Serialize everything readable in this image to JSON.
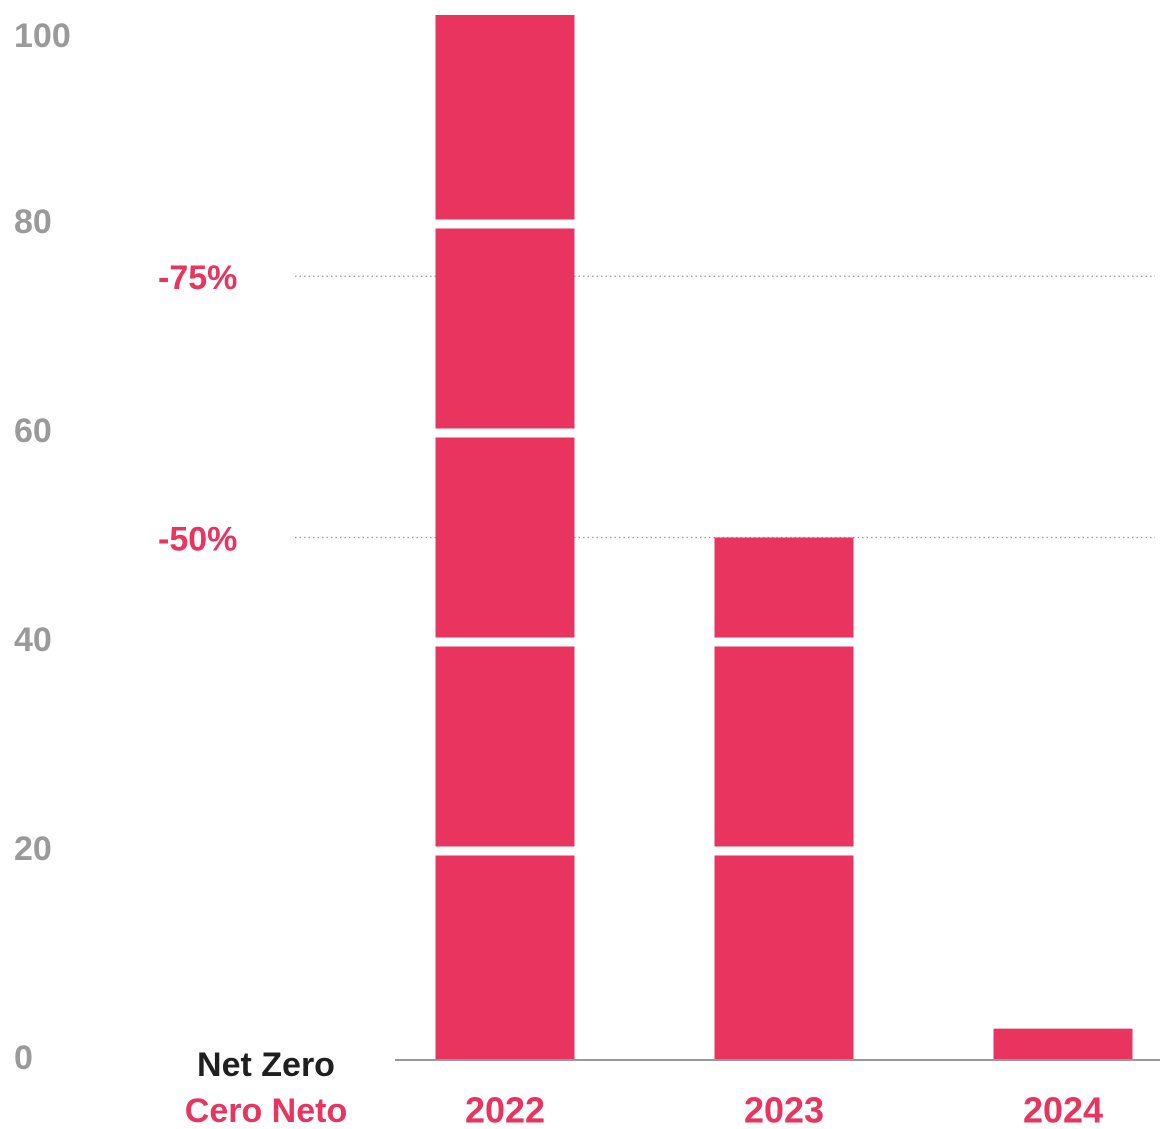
{
  "chart_data": {
    "type": "bar",
    "categories": [
      "2022",
      "2023",
      "2024"
    ],
    "values": [
      100,
      50,
      3
    ],
    "color": "#e8345e",
    "ylim": [
      0,
      100
    ],
    "yticks": [
      0,
      20,
      40,
      60,
      80,
      100
    ],
    "annotations": [
      {
        "label": "-75%",
        "value": 75
      },
      {
        "label": "-50%",
        "value": 50
      }
    ],
    "baseline_labels": [
      "Net Zero",
      "Cero Neto"
    ]
  }
}
